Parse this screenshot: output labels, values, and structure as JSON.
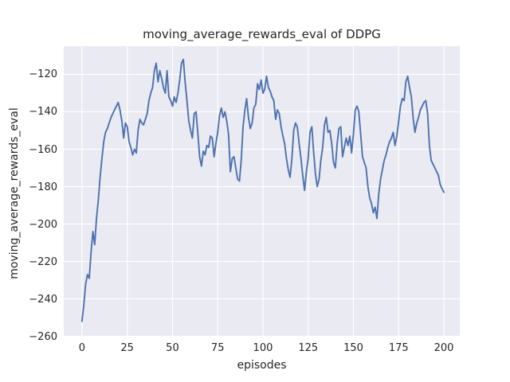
{
  "colors": {
    "figure_background": "#ffffff",
    "axes_background": "#eaeaf2",
    "grid": "#ffffff",
    "line": "#4c72b0",
    "text": "#262626"
  },
  "chart_data": {
    "type": "line",
    "title": "moving_average_rewards_eval of DDPG",
    "xlabel": "episodes",
    "ylabel": "moving_average_rewards_eval",
    "grid": true,
    "legend": false,
    "xticks": [
      0,
      25,
      50,
      75,
      100,
      125,
      150,
      175,
      200
    ],
    "yticks": [
      -120,
      -140,
      -160,
      -180,
      -200,
      -220,
      -240,
      -260
    ],
    "xlim": [
      -10.1,
      208.8
    ],
    "ylim": [
      -260.2,
      -104.9
    ],
    "series": [
      {
        "name": "moving_average_rewards_eval",
        "color": "#4c72b0",
        "x_start": 0,
        "x_step": 1,
        "y": [
          -252,
          -243,
          -232,
          -227,
          -229,
          -215,
          -204,
          -211,
          -197,
          -187,
          -175,
          -165,
          -156,
          -151,
          -149,
          -146,
          -143,
          -141,
          -139,
          -137,
          -135,
          -139,
          -145,
          -154,
          -146,
          -148,
          -156,
          -159,
          -163,
          -160,
          -162,
          -150,
          -144,
          -146,
          -147,
          -144,
          -141,
          -134,
          -130,
          -127,
          -118,
          -114,
          -124,
          -118,
          -122,
          -127,
          -130,
          -118,
          -132,
          -134,
          -137,
          -132,
          -135,
          -130,
          -123,
          -114,
          -112,
          -124,
          -134,
          -145,
          -150,
          -154,
          -141,
          -140,
          -151,
          -164,
          -169,
          -161,
          -163,
          -158,
          -159,
          -153,
          -154,
          -164,
          -157,
          -151,
          -142,
          -138,
          -143,
          -140,
          -145,
          -152,
          -172,
          -165,
          -164,
          -170,
          -176,
          -177,
          -166,
          -148,
          -139,
          -133,
          -143,
          -149,
          -146,
          -138,
          -136,
          -125,
          -128,
          -123,
          -130,
          -128,
          -121,
          -127,
          -129,
          -132,
          -134,
          -144,
          -139,
          -141,
          -148,
          -153,
          -157,
          -165,
          -171,
          -175,
          -165,
          -150,
          -146,
          -148,
          -157,
          -165,
          -174,
          -182,
          -172,
          -165,
          -151,
          -148,
          -161,
          -173,
          -180,
          -176,
          -166,
          -159,
          -147,
          -143,
          -151,
          -150,
          -157,
          -167,
          -170,
          -157,
          -149,
          -148,
          -164,
          -159,
          -154,
          -158,
          -153,
          -162,
          -152,
          -139,
          -137,
          -140,
          -152,
          -164,
          -167,
          -170,
          -180,
          -186,
          -189,
          -194,
          -191,
          -197,
          -184,
          -176,
          -171,
          -166,
          -163,
          -159,
          -156,
          -154,
          -151,
          -158,
          -153,
          -145,
          -137,
          -133,
          -134,
          -124,
          -121,
          -127,
          -132,
          -143,
          -151,
          -146,
          -143,
          -139,
          -137,
          -135,
          -134,
          -141,
          -158,
          -166,
          -168,
          -170,
          -172,
          -174,
          -179,
          -181,
          -183
        ]
      }
    ]
  }
}
